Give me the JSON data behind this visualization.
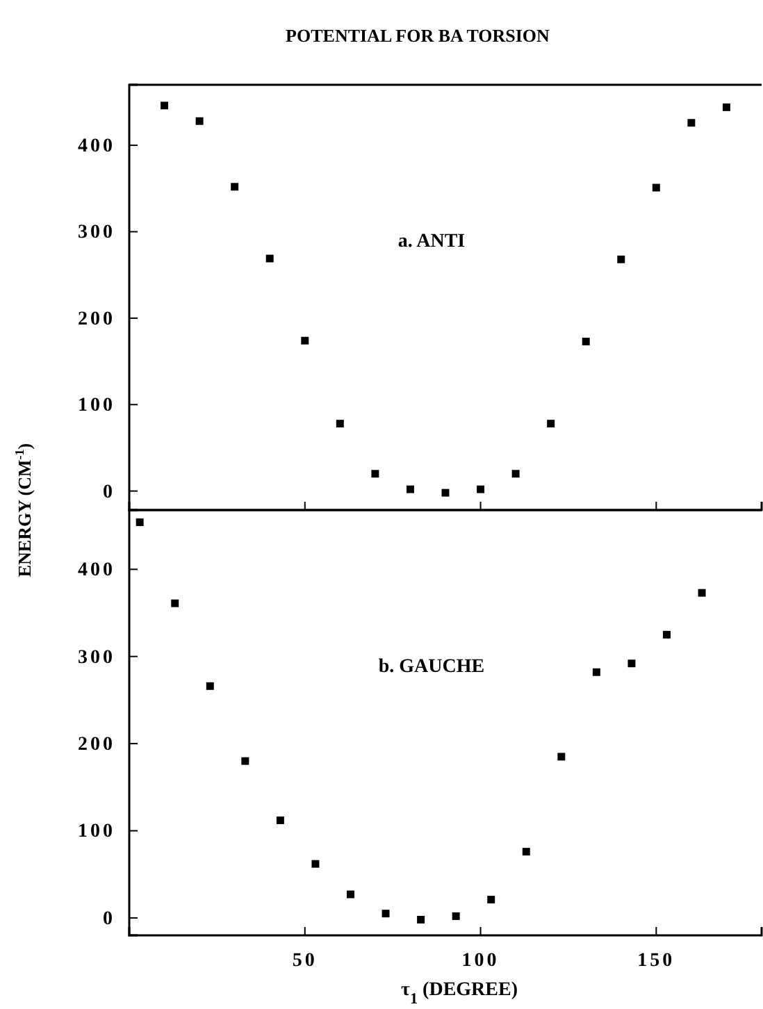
{
  "chart_data": [
    {
      "type": "scatter",
      "title": "POTENTIAL FOR BA TORSION",
      "ylabel": "ENERGY (CM$^{-1}$)",
      "annotations": [
        "a. ANTI"
      ],
      "x": [
        10,
        20,
        30,
        40,
        50,
        60,
        70,
        80,
        90,
        100,
        110,
        120,
        130,
        140,
        150,
        160,
        170
      ],
      "series": [
        {
          "color": "#000000",
          "values": [
            446,
            428,
            352,
            269,
            174,
            78,
            20,
            2,
            -2,
            2,
            20,
            78,
            173,
            268,
            351,
            426,
            444
          ]
        }
      ],
      "xlim": [
        0,
        180
      ],
      "xticks": [
        50,
        100,
        150
      ],
      "ylim": [
        -22,
        470
      ],
      "yticks": [
        0,
        100,
        200,
        300,
        400
      ],
      "tick_labels": "y",
      "marker": "square"
    },
    {
      "type": "scatter",
      "xlabel": "τ$_{1}$ (DEGREE)",
      "annotations": [
        "b. GAUCHE"
      ],
      "x": [
        3,
        13,
        23,
        33,
        43,
        53,
        63,
        73,
        83,
        93,
        103,
        113,
        123,
        133,
        143,
        153,
        163
      ],
      "series": [
        {
          "color": "#000000",
          "values": [
            454,
            361,
            266,
            180,
            112,
            62,
            27,
            5,
            -2,
            2,
            21,
            76,
            185,
            282,
            292,
            325,
            373
          ]
        }
      ],
      "xlim": [
        0,
        180
      ],
      "xticks": [
        50,
        100,
        150
      ],
      "ylim": [
        -20,
        468
      ],
      "yticks": [
        0,
        100,
        200,
        300,
        400
      ],
      "marker": "square"
    }
  ]
}
